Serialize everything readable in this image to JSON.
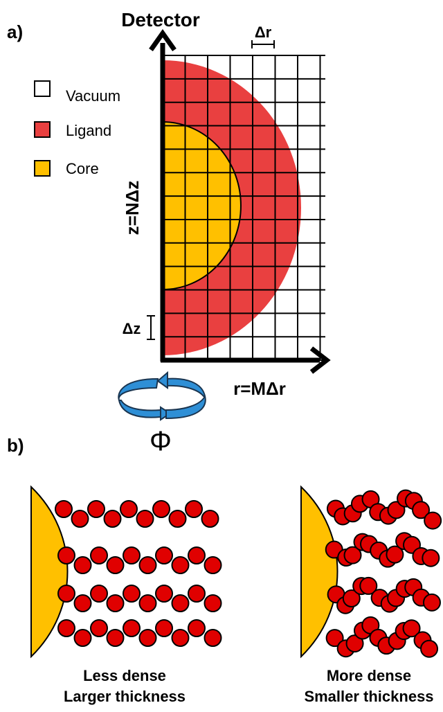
{
  "panel_a": {
    "label": "a)",
    "detector": "Detector",
    "delta_r": "Δr",
    "delta_z": "Δz",
    "z_axis": "z=NΔz",
    "r_axis": "r=MΔr",
    "phi": "Φ",
    "legend": [
      {
        "label": "Vacuum"
      },
      {
        "label": "Ligand"
      },
      {
        "label": "Core"
      }
    ]
  },
  "panel_b": {
    "label": "b)",
    "left": {
      "line1": "Less dense",
      "line2": "Larger thickness"
    },
    "right": {
      "line1": "More dense",
      "line2": "Smaller thickness"
    }
  }
}
